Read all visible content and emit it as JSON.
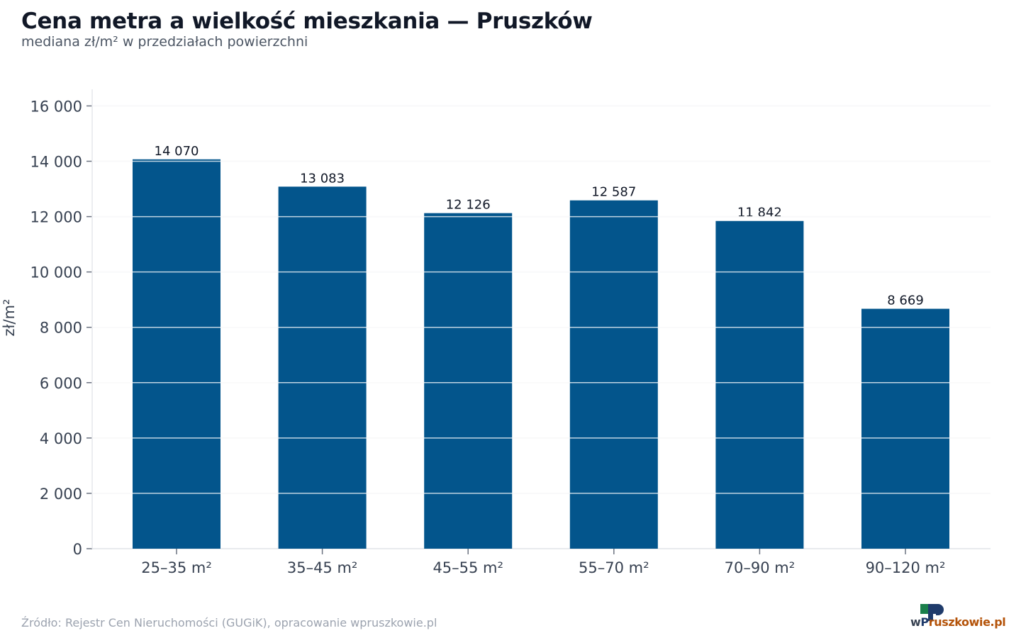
{
  "header": {
    "title": "Cena metra a wielkość mieszkania — Pruszków",
    "subtitle": "mediana zł/m² w przedziałach powierzchni"
  },
  "footer": {
    "source": "Źródło: Rejestr Cen Nieruchomości (GUGiK), opracowanie wpruszkowie.pl"
  },
  "logo": {
    "text": "wpruszkowie.pl",
    "colors": {
      "green": "#1a7f4b",
      "navy": "#1f3b6b",
      "orange": "#b45309"
    }
  },
  "chart_data": {
    "type": "bar",
    "categories": [
      "25–35 m²",
      "35–45 m²",
      "45–55 m²",
      "55–70 m²",
      "70–90 m²",
      "90–120 m²"
    ],
    "values": [
      14070,
      13083,
      12126,
      12587,
      11842,
      8669
    ],
    "data_labels": [
      "14 070",
      "13 083",
      "12 126",
      "12 587",
      "11 842",
      "8 669"
    ],
    "ylabel": "zł/m²",
    "xlabel": "",
    "ylim": [
      0,
      16600
    ],
    "yticks": [
      0,
      2000,
      4000,
      6000,
      8000,
      10000,
      12000,
      14000,
      16000
    ],
    "ytick_labels": [
      "0",
      "2 000",
      "4 000",
      "6 000",
      "8 000",
      "10 000",
      "12 000",
      "14 000",
      "16 000"
    ],
    "grid": true,
    "bar_color": "#03558c"
  }
}
